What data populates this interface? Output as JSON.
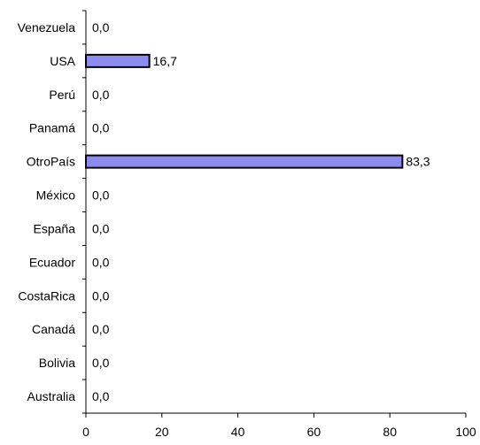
{
  "chart_data": {
    "type": "bar",
    "orientation": "horizontal",
    "categories": [
      "Venezuela",
      "USA",
      "Perú",
      "Panamá",
      "OtroPaís",
      "México",
      "España",
      "Ecuador",
      "CostaRica",
      "Canadá",
      "Bolivia",
      "Australia"
    ],
    "values": [
      0.0,
      16.7,
      0.0,
      0.0,
      83.3,
      0.0,
      0.0,
      0.0,
      0.0,
      0.0,
      0.0,
      0.0
    ],
    "value_labels": [
      "0,0",
      "16,7",
      "0,0",
      "0,0",
      "83,3",
      "0,0",
      "0,0",
      "0,0",
      "0,0",
      "0,0",
      "0,0",
      "0,0"
    ],
    "xlim": [
      0,
      100
    ],
    "x_ticks": [
      0,
      20,
      40,
      60,
      80,
      100
    ],
    "x_tick_labels": [
      "0",
      "20",
      "40",
      "60",
      "80",
      "100"
    ],
    "bar_color": "#8c8cf0",
    "grid": false,
    "legend": "none"
  }
}
